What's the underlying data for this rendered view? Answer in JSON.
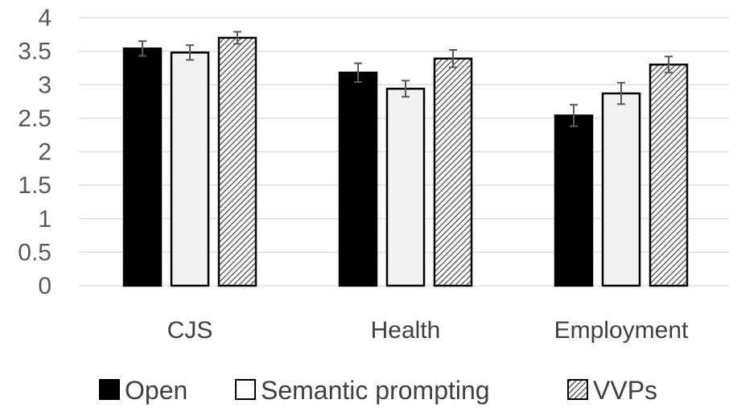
{
  "chart_data": {
    "type": "bar",
    "title": "",
    "xlabel": "",
    "ylabel": "",
    "categories": [
      "CJS",
      "Health",
      "Employment"
    ],
    "ylim": [
      0,
      4
    ],
    "yticks": [
      "0",
      "0.5",
      "1",
      "1.5",
      "2",
      "2.5",
      "3",
      "3.5",
      "4"
    ],
    "grid": true,
    "legend_position": "bottom",
    "error_bars": true,
    "series": [
      {
        "name": "Open",
        "values": [
          3.54,
          3.18,
          2.54
        ],
        "errors": [
          0.11,
          0.14,
          0.16
        ],
        "fill": "#000000",
        "pattern": "solid"
      },
      {
        "name": "Semantic prompting",
        "values": [
          3.48,
          2.94,
          2.87
        ],
        "errors": [
          0.11,
          0.12,
          0.16
        ],
        "fill": "#f2f2f2",
        "pattern": "solid"
      },
      {
        "name": "VVPs",
        "values": [
          3.7,
          3.39,
          3.3
        ],
        "errors": [
          0.09,
          0.13,
          0.12
        ],
        "fill": "#ffffff",
        "pattern": "diagonal-hatch"
      }
    ]
  }
}
